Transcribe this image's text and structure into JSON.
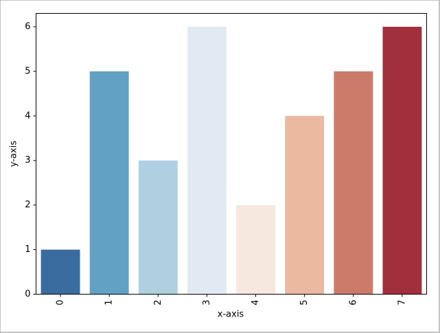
{
  "chart_data": {
    "type": "bar",
    "x_label": "x-axis",
    "y_label": "y-axis",
    "categories": [
      "0",
      "1",
      "2",
      "3",
      "4",
      "5",
      "6",
      "7"
    ],
    "values": [
      1,
      5,
      3,
      6,
      2,
      4,
      5,
      6
    ],
    "colors": [
      "#3a6ca0",
      "#62a0c4",
      "#b0cfe0",
      "#e1e9f2",
      "#f7e8df",
      "#eab9a0",
      "#cc7a6a",
      "#a2303c"
    ],
    "ylim": [
      0,
      6.3
    ],
    "yticks": [
      0,
      1,
      2,
      3,
      4,
      5,
      6
    ],
    "grid": false
  }
}
